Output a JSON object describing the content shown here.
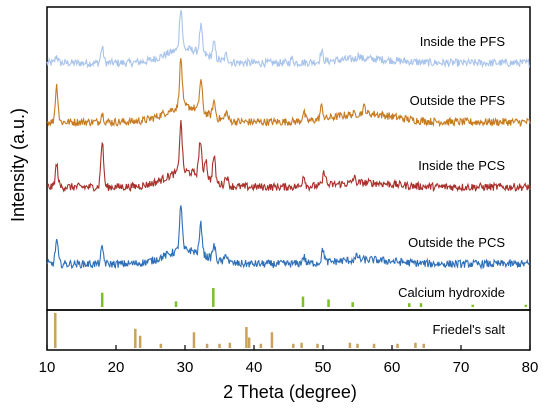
{
  "chart_data": {
    "type": "line",
    "xlabel": "2 Theta (degree)",
    "ylabel": "Intensity (a.u.)",
    "xlim": [
      10,
      80
    ],
    "xticks": [
      10,
      20,
      30,
      40,
      50,
      60,
      70,
      80
    ],
    "grid": false,
    "series": [
      {
        "name": "Inside the PFS",
        "color": "#a9c4ec",
        "peaks": [
          [
            11.4,
            0.25
          ],
          [
            18.0,
            0.55
          ],
          [
            29.4,
            1.5
          ],
          [
            32.3,
            0.95
          ],
          [
            34.2,
            0.55
          ],
          [
            36.0,
            0.25
          ],
          [
            45.5,
            0.15
          ],
          [
            49.8,
            0.35
          ],
          [
            55.2,
            0.15
          ]
        ],
        "humps": [
          [
            30.0,
            4.0,
            0.5
          ],
          [
            56.0,
            6.0,
            0.15
          ]
        ]
      },
      {
        "name": "Outside the PFS",
        "color": "#c77b1f",
        "peaks": [
          [
            11.4,
            1.3
          ],
          [
            18.0,
            0.3
          ],
          [
            29.4,
            1.7
          ],
          [
            32.3,
            1.1
          ],
          [
            34.2,
            0.55
          ],
          [
            36.0,
            0.3
          ],
          [
            47.2,
            0.3
          ],
          [
            49.8,
            0.45
          ],
          [
            56.0,
            0.25
          ]
        ],
        "humps": [
          [
            30.0,
            4.0,
            0.55
          ],
          [
            56.0,
            6.0,
            0.3
          ]
        ]
      },
      {
        "name": "Inside the PCS",
        "color": "#a8302a",
        "peaks": [
          [
            11.4,
            0.8
          ],
          [
            18.0,
            1.6
          ],
          [
            29.4,
            1.75
          ],
          [
            32.2,
            1.25
          ],
          [
            33.0,
            0.7
          ],
          [
            34.2,
            0.9
          ],
          [
            36.0,
            0.35
          ],
          [
            47.2,
            0.4
          ],
          [
            50.2,
            0.5
          ],
          [
            54.5,
            0.2
          ]
        ],
        "humps": [
          [
            30.0,
            4.0,
            0.55
          ],
          [
            56.0,
            6.0,
            0.15
          ]
        ]
      },
      {
        "name": "Outside the PCS",
        "color": "#2f6fb8",
        "peaks": [
          [
            11.4,
            0.85
          ],
          [
            18.0,
            0.55
          ],
          [
            29.4,
            1.55
          ],
          [
            32.3,
            1.05
          ],
          [
            34.2,
            0.5
          ],
          [
            36.0,
            0.3
          ],
          [
            47.2,
            0.25
          ],
          [
            50.0,
            0.45
          ],
          [
            55.0,
            0.15
          ]
        ],
        "humps": [
          [
            30.0,
            4.0,
            0.5
          ],
          [
            56.0,
            6.0,
            0.15
          ]
        ]
      }
    ],
    "references": [
      {
        "name": "Calcium hydroxide",
        "color": "#7cbf2a",
        "sticks": [
          [
            18.0,
            0.75
          ],
          [
            28.7,
            0.3
          ],
          [
            34.1,
            1.0
          ],
          [
            47.1,
            0.55
          ],
          [
            50.8,
            0.4
          ],
          [
            54.3,
            0.25
          ],
          [
            62.5,
            0.2
          ],
          [
            64.2,
            0.2
          ],
          [
            71.7,
            0.12
          ],
          [
            79.4,
            0.12
          ]
        ]
      },
      {
        "name": "Friedel's salt",
        "color": "#c9a25e",
        "sticks": [
          [
            11.2,
            1.0
          ],
          [
            22.8,
            0.55
          ],
          [
            23.5,
            0.35
          ],
          [
            26.5,
            0.12
          ],
          [
            31.3,
            0.45
          ],
          [
            33.2,
            0.12
          ],
          [
            35.0,
            0.12
          ],
          [
            36.5,
            0.15
          ],
          [
            38.9,
            0.6
          ],
          [
            39.3,
            0.3
          ],
          [
            41.0,
            0.12
          ],
          [
            42.6,
            0.45
          ],
          [
            45.7,
            0.12
          ],
          [
            46.9,
            0.15
          ],
          [
            49.2,
            0.12
          ],
          [
            53.9,
            0.15
          ],
          [
            55.0,
            0.12
          ],
          [
            57.4,
            0.12
          ],
          [
            60.8,
            0.12
          ],
          [
            63.4,
            0.15
          ],
          [
            64.6,
            0.12
          ]
        ]
      }
    ]
  }
}
